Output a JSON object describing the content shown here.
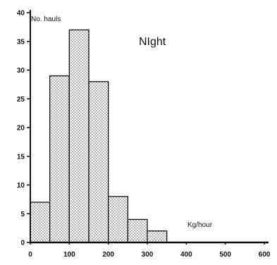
{
  "chart_data": {
    "type": "bar",
    "title": "NIght",
    "ylabel": "No. hauls",
    "xlabel": "Kg/hour",
    "bin_edges": [
      0,
      50,
      100,
      150,
      200,
      250,
      300,
      350
    ],
    "values": [
      7,
      29,
      37,
      28,
      8,
      4,
      2
    ],
    "xlim": [
      0,
      600
    ],
    "ylim": [
      0,
      40
    ],
    "x_ticks": [
      "0",
      "100",
      "200",
      "300",
      "400",
      "500",
      "600"
    ],
    "y_ticks": [
      "0",
      "5",
      "10",
      "15",
      "20",
      "25",
      "30",
      "35",
      "40"
    ],
    "bar_fill": "dotted",
    "grid": false,
    "colors": {
      "bar_fill_dots": "#555555",
      "bar_stroke": "#111111",
      "axis": "#111111",
      "background": "#ffffff"
    }
  }
}
